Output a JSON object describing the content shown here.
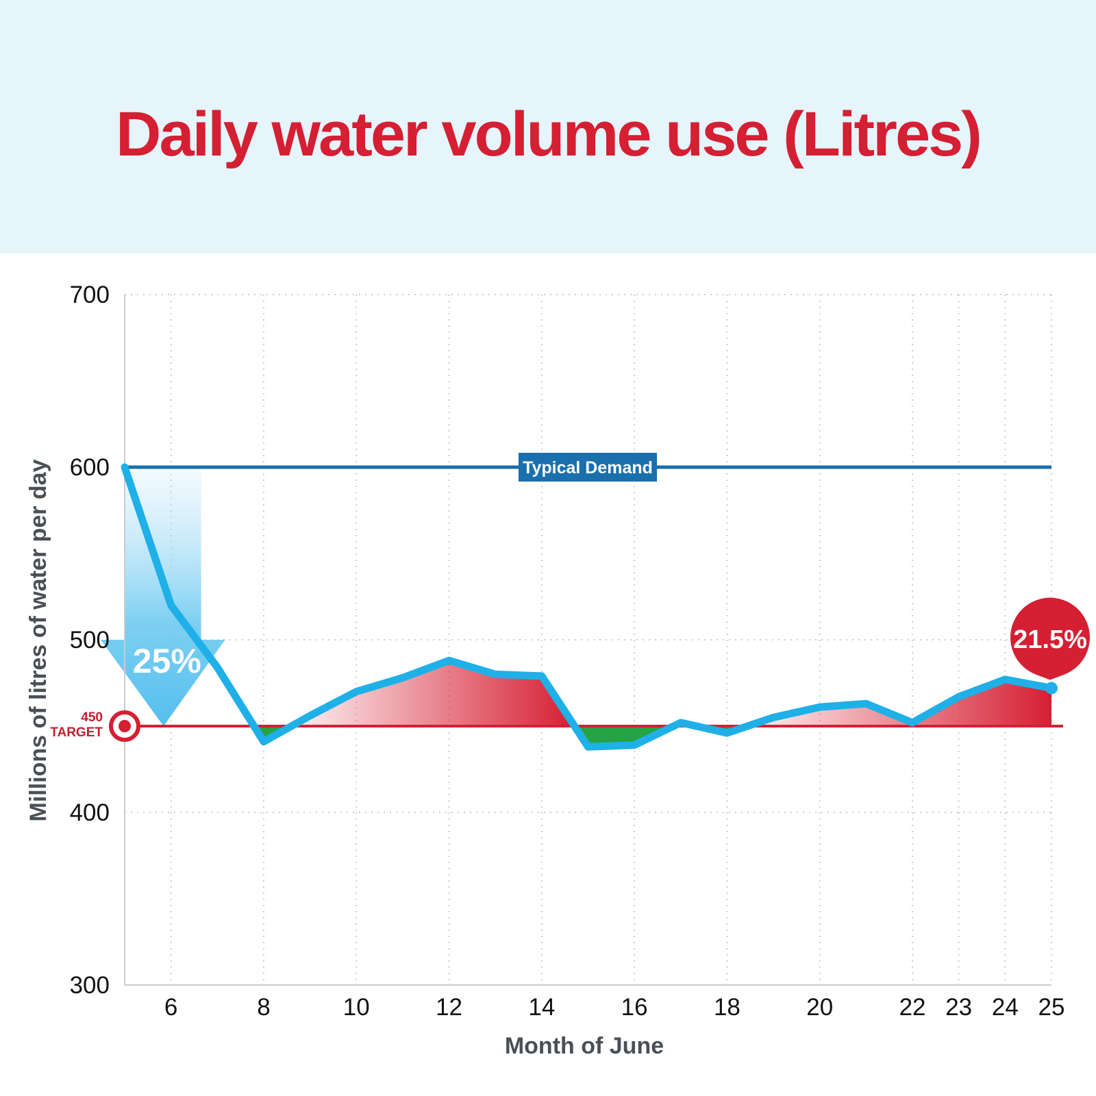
{
  "chart_data": {
    "type": "line",
    "title": "Daily water volume use (Litres)",
    "xlabel": "Month of June",
    "ylabel": "Millions of litres of water per day",
    "ylim": [
      300,
      700
    ],
    "xlim": [
      5,
      25
    ],
    "y_ticks": [
      "300",
      "400",
      "500",
      "600",
      "700"
    ],
    "x_ticks": [
      "6",
      "8",
      "10",
      "12",
      "14",
      "16",
      "18",
      "20",
      "22",
      "23",
      "24",
      "25"
    ],
    "grid": true,
    "colors": {
      "line": "#1fb0e8",
      "demand": "#1a6fad",
      "target": "#d51f32",
      "above": "#d51f32",
      "below": "#1a9e3a",
      "title": "#d51f32"
    },
    "series": [
      {
        "name": "",
        "x": [
          5,
          6,
          7,
          8,
          9,
          10,
          11,
          12,
          13,
          14,
          15,
          16,
          17,
          18,
          19,
          20,
          21,
          22,
          23,
          24,
          25
        ],
        "y": [
          600,
          520,
          484,
          441,
          456,
          470,
          478,
          488,
          480,
          479,
          438,
          439,
          452,
          446,
          455,
          461,
          463,
          452,
          467,
          477,
          472
        ]
      }
    ],
    "reference_lines": {
      "typical_demand": {
        "value": 600,
        "label": "Typical Demand"
      },
      "target": {
        "value": 450,
        "value_label": "450",
        "label": "TARGET"
      }
    },
    "annotations": {
      "reduction": "25%",
      "latest": "21.5%"
    }
  }
}
